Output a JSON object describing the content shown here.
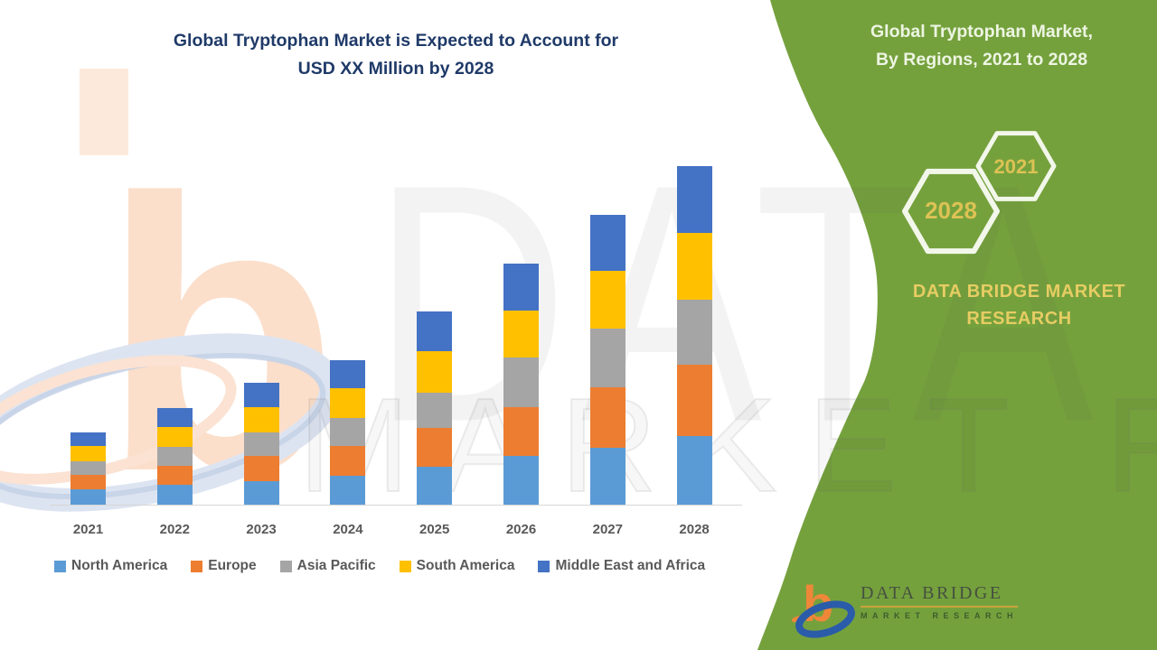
{
  "title": {
    "line1": "Global Tryptophan Market is Expected to Account for",
    "line2": "USD XX Million by 2028"
  },
  "watermark": {
    "line1": "DATA BRIDGE",
    "line2": "MARKET RESEARCH"
  },
  "chart_data": {
    "type": "bar",
    "stacked": true,
    "title": "Global Tryptophan Market is Expected to Account for USD XX Million by 2028",
    "xlabel": "",
    "ylabel": "",
    "y_axis_labels_visible": false,
    "ylim": [
      0,
      400
    ],
    "grid": false,
    "legend_position": "bottom",
    "categories": [
      "2021",
      "2022",
      "2023",
      "2024",
      "2025",
      "2026",
      "2027",
      "2028"
    ],
    "series": [
      {
        "name": "North America",
        "color": "#5b9bd5",
        "values": [
          17,
          22,
          26,
          32,
          42,
          54,
          63,
          76
        ]
      },
      {
        "name": "Europe",
        "color": "#ed7d31",
        "values": [
          16,
          21,
          28,
          33,
          43,
          54,
          67,
          79
        ]
      },
      {
        "name": "Asia Pacific",
        "color": "#a5a5a5",
        "values": [
          15,
          21,
          26,
          31,
          39,
          55,
          65,
          72
        ]
      },
      {
        "name": "South America",
        "color": "#ffc000",
        "values": [
          17,
          22,
          28,
          33,
          46,
          52,
          64,
          74
        ]
      },
      {
        "name": "Middle East and Africa",
        "color": "#4472c4",
        "values": [
          15,
          21,
          27,
          31,
          44,
          52,
          62,
          74
        ]
      }
    ],
    "stack_totals": [
      80,
      107,
      135,
      160,
      214,
      267,
      321,
      375
    ]
  },
  "side_panel": {
    "heading_line1": "Global Tryptophan Market,",
    "heading_line2": "By Regions, 2021 to 2028",
    "hexagons": [
      {
        "label": "2021"
      },
      {
        "label": "2028"
      }
    ],
    "brand_line1": "DATA BRIDGE MARKET",
    "brand_line2": "RESEARCH"
  },
  "footer_logo": {
    "wordmark": "DATA BRIDGE",
    "tagline": "MARKET RESEARCH"
  },
  "colors": {
    "panel_green": "#75a13d",
    "title_blue": "#1f3a68",
    "gold_text": "#dcc254",
    "axis_text": "#595959"
  }
}
